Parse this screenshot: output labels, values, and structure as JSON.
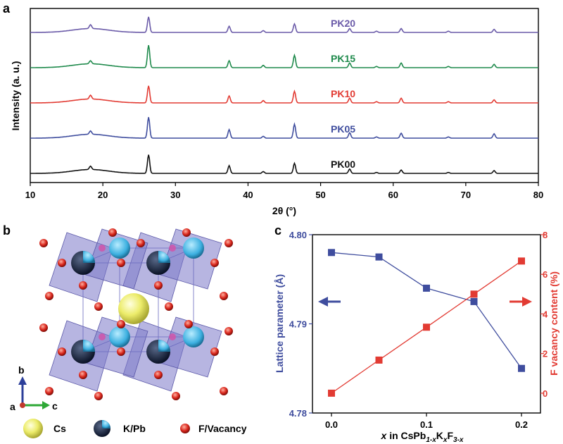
{
  "panels": {
    "a": "a",
    "b": "b",
    "c": "c"
  },
  "colors": {
    "blue": "#3f4d9e",
    "red": "#e23b33",
    "green": "#1f8a4c",
    "purple": "#6a5aa8",
    "black": "#111111"
  },
  "chart_data": [
    {
      "type": "line",
      "xlabel": "2θ (°)",
      "ylabel": "Intensity (a. u.)",
      "xlim": [
        10,
        80
      ],
      "xticks": [
        "10",
        "20",
        "30",
        "40",
        "50",
        "60",
        "70",
        "80"
      ],
      "peaks": [
        18.3,
        26.3,
        37.4,
        42.1,
        46.4,
        54.0,
        57.7,
        61.1,
        67.6,
        73.9
      ],
      "series": [
        {
          "name": "PK20",
          "color": "#6a5aa8",
          "heights": [
            0.25,
            1.0,
            0.4,
            0.12,
            0.55,
            0.25,
            0.08,
            0.25,
            0.08,
            0.2
          ]
        },
        {
          "name": "PK15",
          "color": "#1f8a4c",
          "heights": [
            0.2,
            1.45,
            0.45,
            0.15,
            0.8,
            0.3,
            0.08,
            0.3,
            0.08,
            0.22
          ]
        },
        {
          "name": "PK10",
          "color": "#e23b33",
          "heights": [
            0.25,
            1.1,
            0.45,
            0.15,
            0.75,
            0.3,
            0.08,
            0.3,
            0.08,
            0.2
          ]
        },
        {
          "name": "PK05",
          "color": "#3f4d9e",
          "heights": [
            0.22,
            1.35,
            0.55,
            0.12,
            0.9,
            0.35,
            0.08,
            0.32,
            0.08,
            0.28
          ]
        },
        {
          "name": "PK00",
          "color": "#111111",
          "heights": [
            0.22,
            1.2,
            0.5,
            0.12,
            0.65,
            0.28,
            0.06,
            0.22,
            0.06,
            0.18
          ]
        }
      ]
    },
    {
      "type": "line",
      "xlabel_parts": [
        "x",
        " in CsPb",
        "1-x",
        "K",
        "x",
        "F",
        "3-x"
      ],
      "ylabel_left": "Lattice parameter (Å)",
      "ylabel_right": "F vacancy content (%)",
      "xlim": [
        -0.02,
        0.22
      ],
      "ylim_left": [
        4.78,
        4.8
      ],
      "ylim_right": [
        -1,
        8
      ],
      "xticks": [
        "0.0",
        "0.1",
        "0.2"
      ],
      "yticks_left": [
        "4.78",
        "4.79",
        "4.80"
      ],
      "yticks_right": [
        "0",
        "2",
        "4",
        "6",
        "8"
      ],
      "x": [
        0.0,
        0.05,
        0.1,
        0.15,
        0.2
      ],
      "series": [
        {
          "axis": "left",
          "color": "#3f4d9e",
          "values": [
            4.798,
            4.7975,
            4.794,
            4.7925,
            4.785
          ]
        },
        {
          "axis": "right",
          "color": "#e23b33",
          "values": [
            0.0,
            1.67,
            3.33,
            5.0,
            6.67
          ]
        }
      ]
    }
  ],
  "legend_b": {
    "cs": "Cs",
    "kpb": "K/Pb",
    "fvac": "F/Vacancy"
  },
  "axes_b": {
    "a": "a",
    "b": "b",
    "c": "c"
  }
}
